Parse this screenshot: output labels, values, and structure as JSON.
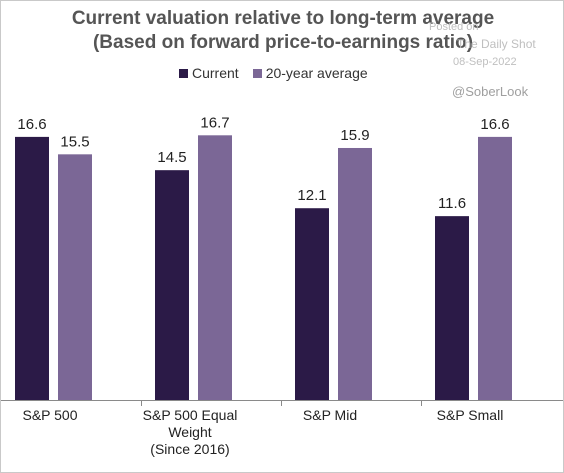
{
  "chart_data": {
    "type": "bar",
    "title": "Current valuation relative to long-term average",
    "subtitle": "(Based on forward price-to-earnings ratio)",
    "categories": [
      [
        "S&P 500"
      ],
      [
        "S&P 500 Equal",
        "Weight",
        "(Since 2016)"
      ],
      [
        "S&P Mid"
      ],
      [
        "S&P Small"
      ]
    ],
    "series": [
      {
        "name": "Current",
        "values": [
          16.6,
          14.5,
          12.1,
          11.6
        ],
        "color": "#2b1a47"
      },
      {
        "name": "20-year average",
        "values": [
          15.5,
          16.7,
          15.9,
          16.6
        ],
        "color": "#7b6796"
      }
    ],
    "ylim": [
      0,
      20
    ],
    "grid": false,
    "legend_position": "top-center",
    "xlabel": "",
    "ylabel": ""
  },
  "watermark": {
    "posted_on": "Posted on",
    "source": "The Daily Shot",
    "date": "08-Sep-2022",
    "handle": "@SoberLook"
  }
}
